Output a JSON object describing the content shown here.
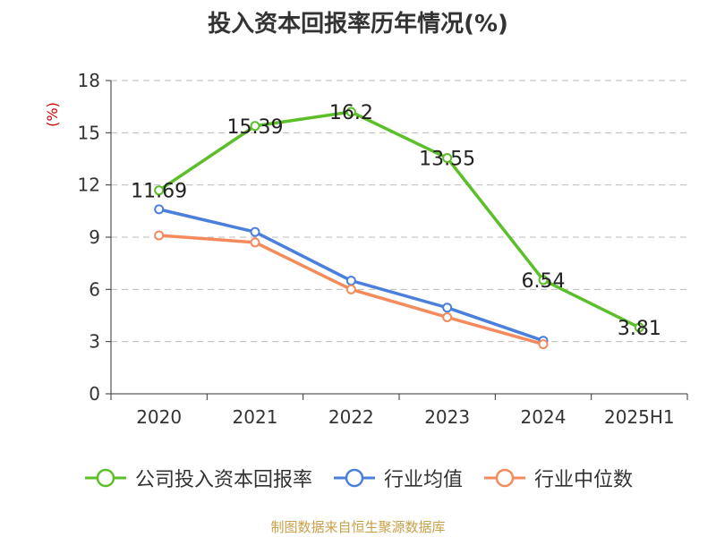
{
  "title": "投入资本回报率历年情况(%)",
  "source": "制图数据来自恒生聚源数据库",
  "chart_data": {
    "type": "line",
    "categories": [
      "2020",
      "2021",
      "2022",
      "2023",
      "2024",
      "2025H1"
    ],
    "ylabel": "(%)",
    "ylim": [
      0,
      18
    ],
    "yticks": [
      0,
      3,
      6,
      9,
      12,
      15,
      18
    ],
    "grid": true,
    "legend_position": "bottom",
    "series": [
      {
        "name": "公司投入资本回报率",
        "color": "#5cbf2a",
        "values": [
          11.69,
          15.39,
          16.2,
          13.55,
          6.54,
          3.81
        ],
        "labels": [
          "11.69",
          "15.39",
          "16.2",
          "13.55",
          "6.54",
          "3.81"
        ]
      },
      {
        "name": "行业均值",
        "color": "#4a7fdc",
        "values": [
          10.6,
          9.3,
          6.5,
          4.95,
          3.05,
          null
        ]
      },
      {
        "name": "行业中位数",
        "color": "#f58b5c",
        "values": [
          9.1,
          8.7,
          6.0,
          4.4,
          2.85,
          null
        ]
      }
    ]
  }
}
